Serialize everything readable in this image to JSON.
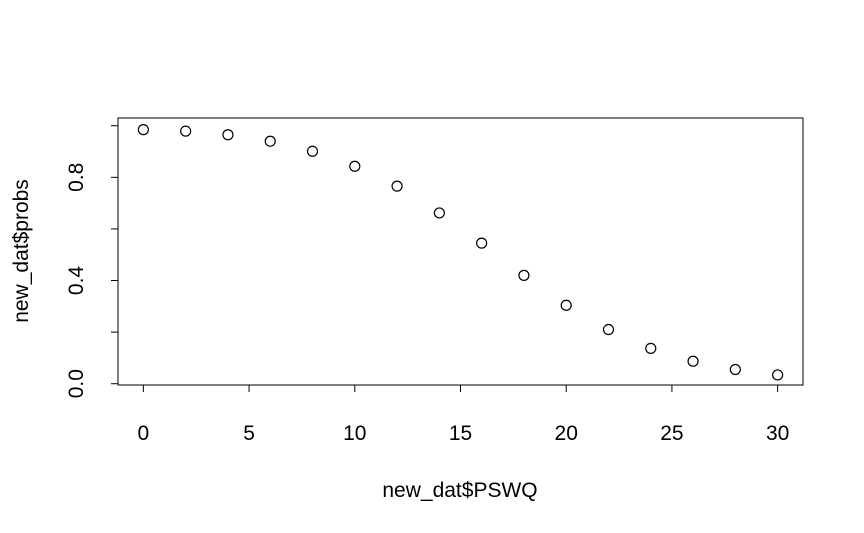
{
  "chart_data": {
    "type": "scatter",
    "title": "",
    "xlabel": "new_dat$PSWQ",
    "ylabel": "new_dat$probs",
    "xlim": [
      -1.2,
      31.2
    ],
    "ylim": [
      -0.005,
      1.03
    ],
    "x_ticks": [
      0,
      5,
      10,
      15,
      20,
      25,
      30
    ],
    "x_tick_labels": [
      "0",
      "5",
      "10",
      "15",
      "20",
      "25",
      "30"
    ],
    "y_ticks": [
      0.0,
      0.2,
      0.4,
      0.6,
      0.8,
      1.0
    ],
    "y_tick_labels": [
      "0.0",
      "",
      "0.4",
      "",
      "0.8",
      ""
    ],
    "marker": "open-circle",
    "grid": false,
    "legend": "none",
    "x": [
      0,
      2,
      4,
      6,
      8,
      10,
      12,
      14,
      16,
      18,
      20,
      22,
      24,
      26,
      28,
      30
    ],
    "y": [
      0.985,
      0.979,
      0.965,
      0.94,
      0.901,
      0.843,
      0.766,
      0.662,
      0.545,
      0.42,
      0.304,
      0.21,
      0.137,
      0.087,
      0.055,
      0.034
    ]
  }
}
